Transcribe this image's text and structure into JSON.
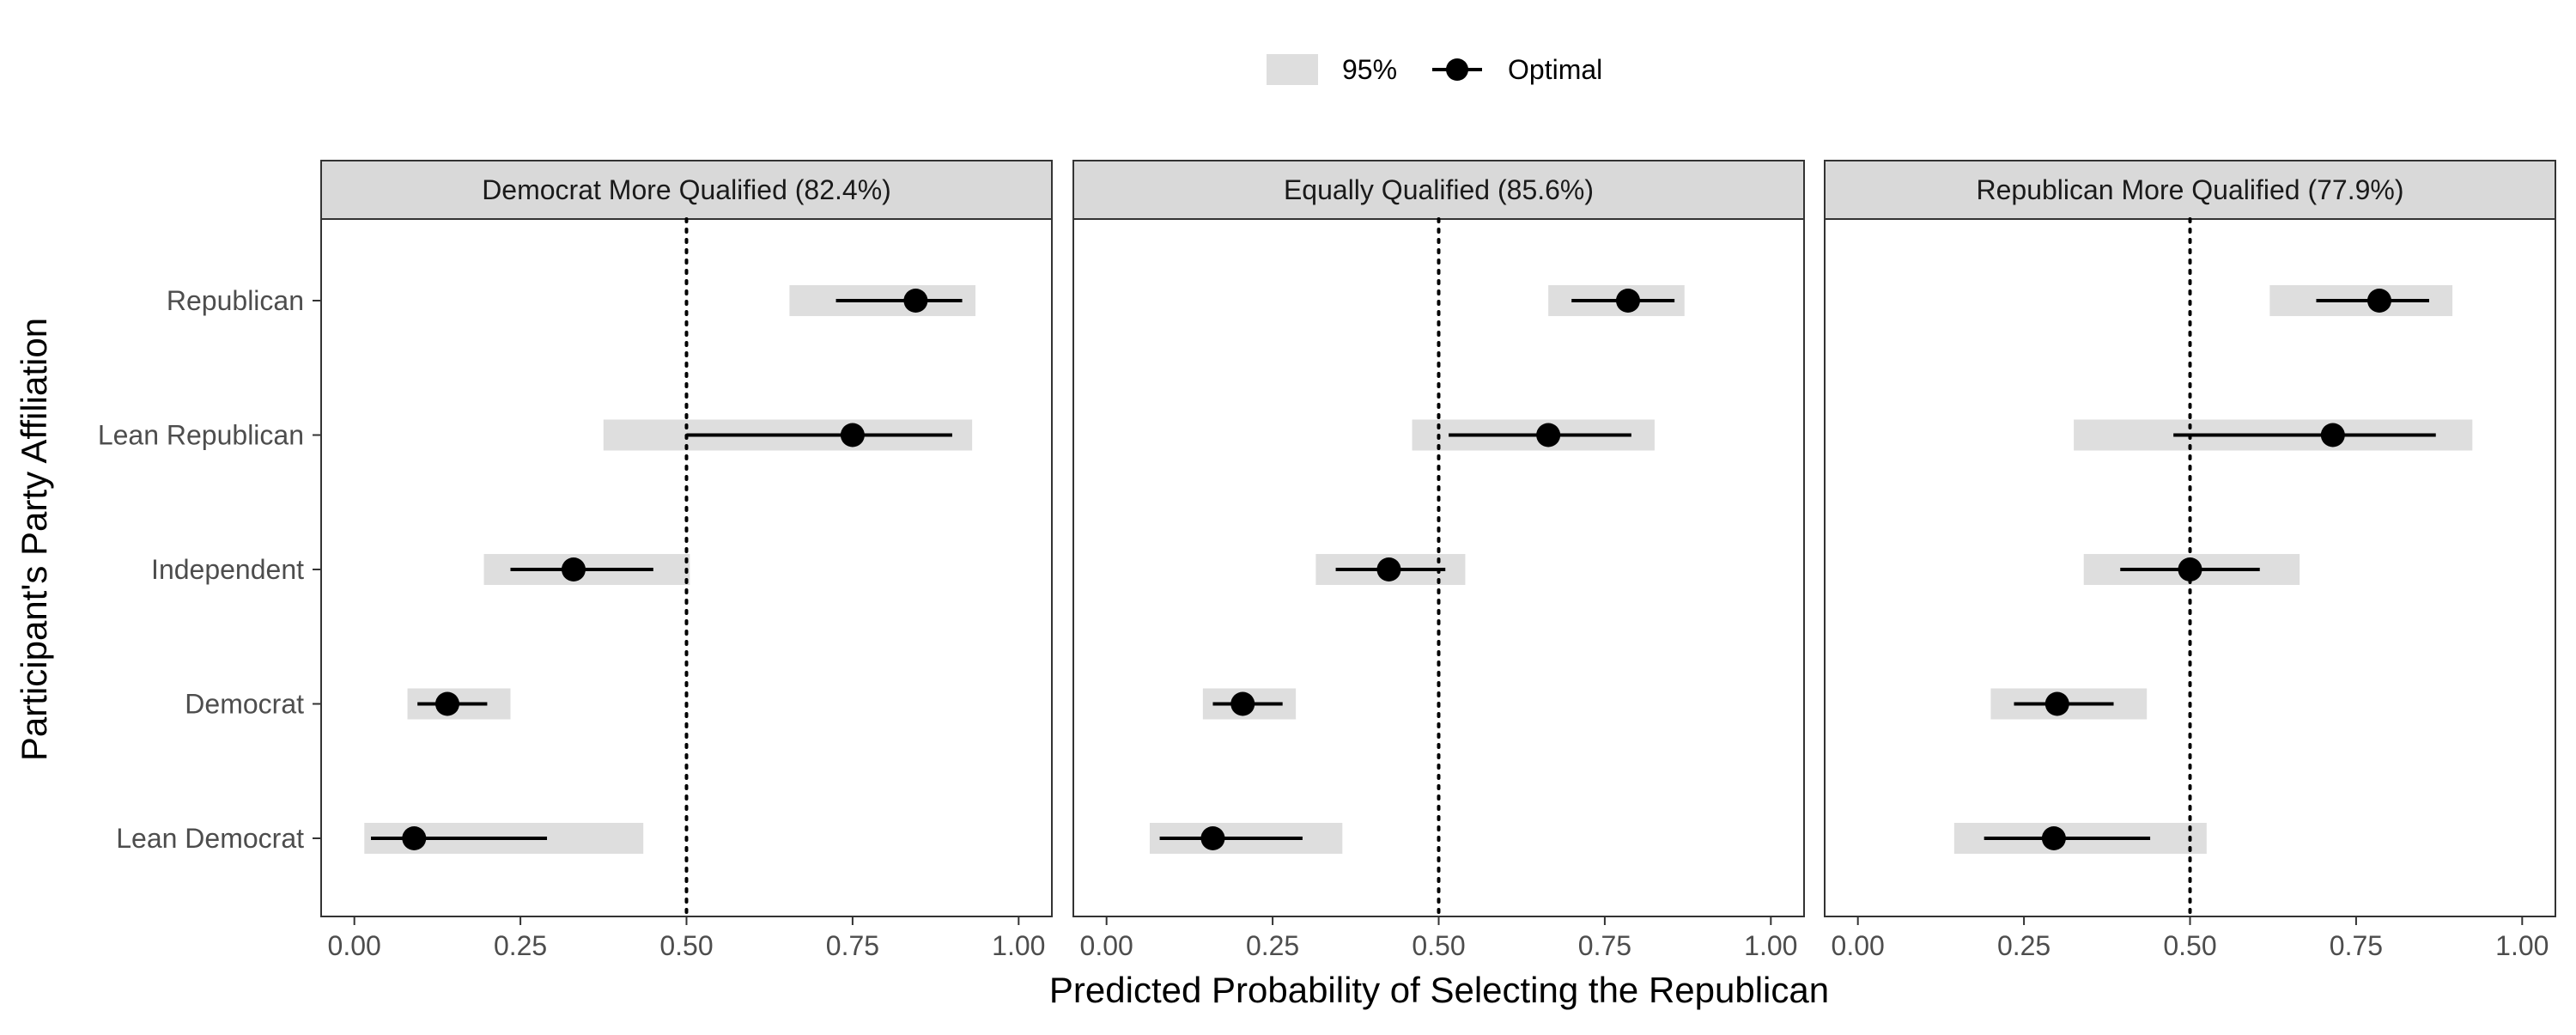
{
  "chart_data": {
    "type": "dot-interval",
    "xlabel": "Predicted Probability of Selecting the Republican",
    "ylabel": "Participant's Party Affiliation",
    "xlim": [
      -0.05,
      1.05
    ],
    "xticks": [
      0,
      0.25,
      0.5,
      0.75,
      1
    ],
    "xtick_labels": [
      "0.00",
      "0.25",
      "0.50",
      "0.75",
      "1.00"
    ],
    "reference_line": 0.5,
    "categories": [
      "Republican",
      "Lean Republican",
      "Independent",
      "Democrat",
      "Lean Democrat"
    ],
    "legend": {
      "position": "top",
      "band_label": "95%",
      "point_label": "Optimal"
    },
    "colors": {
      "band": "#dedede",
      "point": "#000000",
      "strip": "#d9d9d9",
      "panel_border": "#333333",
      "reference": "#000000"
    },
    "grid": false,
    "panels": [
      {
        "title": "Democrat More Qualified (82.4%)",
        "series": [
          {
            "category": "Republican",
            "estimate": 0.845,
            "ci_low": 0.725,
            "ci_high": 0.915,
            "band_low": 0.655,
            "band_high": 0.935
          },
          {
            "category": "Lean Republican",
            "estimate": 0.75,
            "ci_low": 0.5,
            "ci_high": 0.9,
            "band_low": 0.375,
            "band_high": 0.93
          },
          {
            "category": "Independent",
            "estimate": 0.33,
            "ci_low": 0.235,
            "ci_high": 0.45,
            "band_low": 0.195,
            "band_high": 0.505
          },
          {
            "category": "Democrat",
            "estimate": 0.14,
            "ci_low": 0.095,
            "ci_high": 0.2,
            "band_low": 0.08,
            "band_high": 0.235
          },
          {
            "category": "Lean Democrat",
            "estimate": 0.09,
            "ci_low": 0.025,
            "ci_high": 0.29,
            "band_low": 0.015,
            "band_high": 0.435
          }
        ]
      },
      {
        "title": "Equally Qualified (85.6%)",
        "series": [
          {
            "category": "Republican",
            "estimate": 0.785,
            "ci_low": 0.7,
            "ci_high": 0.855,
            "band_low": 0.665,
            "band_high": 0.87
          },
          {
            "category": "Lean Republican",
            "estimate": 0.665,
            "ci_low": 0.515,
            "ci_high": 0.79,
            "band_low": 0.46,
            "band_high": 0.825
          },
          {
            "category": "Independent",
            "estimate": 0.425,
            "ci_low": 0.345,
            "ci_high": 0.51,
            "band_low": 0.315,
            "band_high": 0.54
          },
          {
            "category": "Democrat",
            "estimate": 0.205,
            "ci_low": 0.16,
            "ci_high": 0.265,
            "band_low": 0.145,
            "band_high": 0.285
          },
          {
            "category": "Lean Democrat",
            "estimate": 0.16,
            "ci_low": 0.08,
            "ci_high": 0.295,
            "band_low": 0.065,
            "band_high": 0.355
          }
        ]
      },
      {
        "title": "Republican More Qualified (77.9%)",
        "series": [
          {
            "category": "Republican",
            "estimate": 0.785,
            "ci_low": 0.69,
            "ci_high": 0.86,
            "band_low": 0.62,
            "band_high": 0.895
          },
          {
            "category": "Lean Republican",
            "estimate": 0.715,
            "ci_low": 0.475,
            "ci_high": 0.87,
            "band_low": 0.325,
            "band_high": 0.925
          },
          {
            "category": "Independent",
            "estimate": 0.5,
            "ci_low": 0.395,
            "ci_high": 0.605,
            "band_low": 0.34,
            "band_high": 0.665
          },
          {
            "category": "Democrat",
            "estimate": 0.3,
            "ci_low": 0.235,
            "ci_high": 0.385,
            "band_low": 0.2,
            "band_high": 0.435
          },
          {
            "category": "Lean Democrat",
            "estimate": 0.295,
            "ci_low": 0.19,
            "ci_high": 0.44,
            "band_low": 0.145,
            "band_high": 0.525
          }
        ]
      }
    ]
  }
}
